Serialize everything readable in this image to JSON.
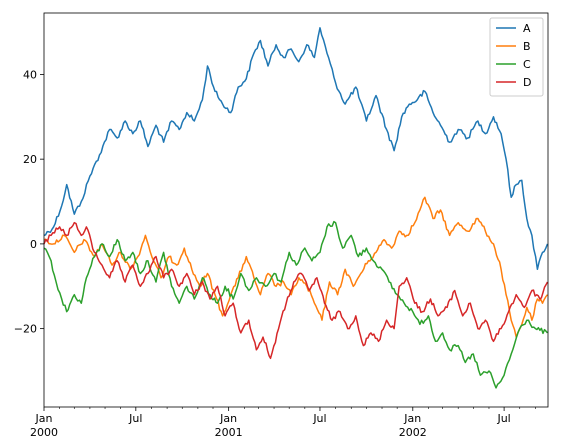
{
  "chart_data": {
    "type": "line",
    "title": "",
    "xlabel": "",
    "ylabel": "",
    "grid": false,
    "legend_position": "top-right",
    "xlim": [
      "2000-01-01",
      "2002-09-26"
    ],
    "ylim": [
      -38.5,
      54.5
    ],
    "x_ticks": [
      {
        "date": "2000-01-01",
        "label": "Jan",
        "sublabel": "2000"
      },
      {
        "date": "2000-07-01",
        "label": "Jul",
        "sublabel": ""
      },
      {
        "date": "2001-01-01",
        "label": "Jan",
        "sublabel": "2001"
      },
      {
        "date": "2001-07-01",
        "label": "Jul",
        "sublabel": ""
      },
      {
        "date": "2002-01-01",
        "label": "Jan",
        "sublabel": "2002"
      },
      {
        "date": "2002-07-01",
        "label": "Jul",
        "sublabel": ""
      }
    ],
    "y_ticks": [
      {
        "value": 40,
        "label": "40"
      },
      {
        "value": 20,
        "label": "20"
      },
      {
        "value": 0,
        "label": "0"
      },
      {
        "value": -20,
        "label": "−20"
      }
    ],
    "series": [
      {
        "name": "A",
        "color": "#1f77b4",
        "points": [
          [
            "2000-01-01",
            2
          ],
          [
            "2000-01-20",
            4
          ],
          [
            "2000-02-05",
            9
          ],
          [
            "2000-02-15",
            14
          ],
          [
            "2000-03-01",
            7
          ],
          [
            "2000-03-15",
            10
          ],
          [
            "2000-04-01",
            16
          ],
          [
            "2000-04-20",
            21
          ],
          [
            "2000-05-10",
            27
          ],
          [
            "2000-05-25",
            25
          ],
          [
            "2000-06-10",
            29
          ],
          [
            "2000-06-25",
            26
          ],
          [
            "2000-07-10",
            29
          ],
          [
            "2000-07-25",
            23
          ],
          [
            "2000-08-10",
            28
          ],
          [
            "2000-08-25",
            24
          ],
          [
            "2000-09-10",
            29
          ],
          [
            "2000-09-25",
            27
          ],
          [
            "2000-10-10",
            31
          ],
          [
            "2000-10-25",
            29
          ],
          [
            "2000-11-10",
            34
          ],
          [
            "2000-11-20",
            42
          ],
          [
            "2000-12-05",
            36
          ],
          [
            "2000-12-20",
            33
          ],
          [
            "2001-01-05",
            31
          ],
          [
            "2001-01-20",
            37
          ],
          [
            "2001-02-05",
            39
          ],
          [
            "2001-02-20",
            45
          ],
          [
            "2001-03-05",
            48
          ],
          [
            "2001-03-20",
            42
          ],
          [
            "2001-04-05",
            47
          ],
          [
            "2001-04-20",
            44
          ],
          [
            "2001-05-05",
            46
          ],
          [
            "2001-05-20",
            43
          ],
          [
            "2001-06-05",
            47
          ],
          [
            "2001-06-20",
            44
          ],
          [
            "2001-07-01",
            51
          ],
          [
            "2001-07-15",
            45
          ],
          [
            "2001-08-01",
            38
          ],
          [
            "2001-08-20",
            33
          ],
          [
            "2001-09-10",
            37
          ],
          [
            "2001-10-01",
            29
          ],
          [
            "2001-10-20",
            35
          ],
          [
            "2001-11-10",
            27
          ],
          [
            "2001-11-25",
            22
          ],
          [
            "2001-12-10",
            30
          ],
          [
            "2001-12-25",
            33
          ],
          [
            "2002-01-10",
            34
          ],
          [
            "2002-01-25",
            36
          ],
          [
            "2002-02-10",
            31
          ],
          [
            "2002-02-25",
            28
          ],
          [
            "2002-03-15",
            24
          ],
          [
            "2002-04-01",
            27
          ],
          [
            "2002-04-20",
            25
          ],
          [
            "2002-05-10",
            29
          ],
          [
            "2002-05-25",
            26
          ],
          [
            "2002-06-10",
            30
          ],
          [
            "2002-06-25",
            26
          ],
          [
            "2002-07-05",
            20
          ],
          [
            "2002-07-15",
            11
          ],
          [
            "2002-07-25",
            14
          ],
          [
            "2002-08-05",
            15
          ],
          [
            "2002-08-15",
            6
          ],
          [
            "2002-08-25",
            2
          ],
          [
            "2002-09-05",
            -6
          ],
          [
            "2002-09-15",
            -2
          ],
          [
            "2002-09-25",
            0
          ]
        ]
      },
      {
        "name": "B",
        "color": "#ff7f0e",
        "points": [
          [
            "2000-01-01",
            1
          ],
          [
            "2000-01-20",
            0
          ],
          [
            "2000-02-10",
            2
          ],
          [
            "2000-03-01",
            -2
          ],
          [
            "2000-03-20",
            1
          ],
          [
            "2000-04-10",
            -3
          ],
          [
            "2000-04-25",
            0
          ],
          [
            "2000-05-15",
            -5
          ],
          [
            "2000-06-01",
            -2
          ],
          [
            "2000-06-20",
            -6
          ],
          [
            "2000-07-05",
            -3
          ],
          [
            "2000-07-20",
            2
          ],
          [
            "2000-08-05",
            -4
          ],
          [
            "2000-08-20",
            -8
          ],
          [
            "2000-09-05",
            -3
          ],
          [
            "2000-09-20",
            -5
          ],
          [
            "2000-10-05",
            -1
          ],
          [
            "2000-10-20",
            -6
          ],
          [
            "2000-11-05",
            -10
          ],
          [
            "2000-11-20",
            -7
          ],
          [
            "2000-12-05",
            -12
          ],
          [
            "2000-12-20",
            -17
          ],
          [
            "2001-01-05",
            -12
          ],
          [
            "2001-01-20",
            -8
          ],
          [
            "2001-02-05",
            -3
          ],
          [
            "2001-02-20",
            -8
          ],
          [
            "2001-03-05",
            -12
          ],
          [
            "2001-03-20",
            -7
          ],
          [
            "2001-04-05",
            -10
          ],
          [
            "2001-04-20",
            -9
          ],
          [
            "2001-05-05",
            -12
          ],
          [
            "2001-05-20",
            -8
          ],
          [
            "2001-06-05",
            -10
          ],
          [
            "2001-06-20",
            -14
          ],
          [
            "2001-07-05",
            -18
          ],
          [
            "2001-07-20",
            -9
          ],
          [
            "2001-08-05",
            -12
          ],
          [
            "2001-08-20",
            -6
          ],
          [
            "2001-09-05",
            -10
          ],
          [
            "2001-09-20",
            -7
          ],
          [
            "2001-10-05",
            -4
          ],
          [
            "2001-10-20",
            -2
          ],
          [
            "2001-11-05",
            1
          ],
          [
            "2001-11-20",
            -1
          ],
          [
            "2001-12-05",
            3
          ],
          [
            "2001-12-20",
            2
          ],
          [
            "2002-01-05",
            5
          ],
          [
            "2002-01-15",
            8
          ],
          [
            "2002-01-25",
            11
          ],
          [
            "2002-02-10",
            6
          ],
          [
            "2002-02-25",
            8
          ],
          [
            "2002-03-15",
            2
          ],
          [
            "2002-04-01",
            5
          ],
          [
            "2002-04-20",
            3
          ],
          [
            "2002-05-10",
            6
          ],
          [
            "2002-05-25",
            3
          ],
          [
            "2002-06-10",
            0
          ],
          [
            "2002-06-25",
            -6
          ],
          [
            "2002-07-05",
            -12
          ],
          [
            "2002-07-15",
            -18
          ],
          [
            "2002-07-25",
            -22
          ],
          [
            "2002-08-05",
            -19
          ],
          [
            "2002-08-15",
            -15
          ],
          [
            "2002-08-25",
            -18
          ],
          [
            "2002-09-05",
            -13
          ],
          [
            "2002-09-15",
            -14
          ],
          [
            "2002-09-25",
            -12
          ]
        ]
      },
      {
        "name": "C",
        "color": "#2ca02c",
        "points": [
          [
            "2000-01-01",
            -1
          ],
          [
            "2000-01-15",
            -4
          ],
          [
            "2000-01-25",
            -9
          ],
          [
            "2000-02-05",
            -13
          ],
          [
            "2000-02-15",
            -16
          ],
          [
            "2000-03-01",
            -12
          ],
          [
            "2000-03-15",
            -14
          ],
          [
            "2000-03-25",
            -8
          ],
          [
            "2000-04-10",
            -3
          ],
          [
            "2000-04-25",
            0
          ],
          [
            "2000-05-10",
            -3
          ],
          [
            "2000-05-25",
            1
          ],
          [
            "2000-06-10",
            -4
          ],
          [
            "2000-06-25",
            -2
          ],
          [
            "2000-07-10",
            -7
          ],
          [
            "2000-07-25",
            -4
          ],
          [
            "2000-08-10",
            -9
          ],
          [
            "2000-08-25",
            -2
          ],
          [
            "2000-09-10",
            -10
          ],
          [
            "2000-09-25",
            -14
          ],
          [
            "2000-10-10",
            -10
          ],
          [
            "2000-10-25",
            -13
          ],
          [
            "2000-11-10",
            -8
          ],
          [
            "2000-11-25",
            -12
          ],
          [
            "2000-12-10",
            -14
          ],
          [
            "2000-12-25",
            -10
          ],
          [
            "2001-01-10",
            -13
          ],
          [
            "2001-01-25",
            -7
          ],
          [
            "2001-02-10",
            -11
          ],
          [
            "2001-02-25",
            -8
          ],
          [
            "2001-03-15",
            -10
          ],
          [
            "2001-04-01",
            -7
          ],
          [
            "2001-04-15",
            -9
          ],
          [
            "2001-05-01",
            -2
          ],
          [
            "2001-05-15",
            -5
          ],
          [
            "2001-06-01",
            -1
          ],
          [
            "2001-06-15",
            -4
          ],
          [
            "2001-07-01",
            -2
          ],
          [
            "2001-07-15",
            4
          ],
          [
            "2001-08-01",
            5
          ],
          [
            "2001-08-15",
            -1
          ],
          [
            "2001-09-01",
            2
          ],
          [
            "2001-09-15",
            -3
          ],
          [
            "2001-10-01",
            -1
          ],
          [
            "2001-10-15",
            -4
          ],
          [
            "2001-11-01",
            -6
          ],
          [
            "2001-11-15",
            -9
          ],
          [
            "2001-12-01",
            -12
          ],
          [
            "2001-12-15",
            -14
          ],
          [
            "2002-01-01",
            -16
          ],
          [
            "2002-01-15",
            -19
          ],
          [
            "2002-02-01",
            -17
          ],
          [
            "2002-02-15",
            -23
          ],
          [
            "2002-03-01",
            -21
          ],
          [
            "2002-03-15",
            -25
          ],
          [
            "2002-04-01",
            -24
          ],
          [
            "2002-04-15",
            -28
          ],
          [
            "2002-05-01",
            -26
          ],
          [
            "2002-05-15",
            -31
          ],
          [
            "2002-06-01",
            -30
          ],
          [
            "2002-06-15",
            -34
          ],
          [
            "2002-07-01",
            -31
          ],
          [
            "2002-07-15",
            -26
          ],
          [
            "2002-08-01",
            -20
          ],
          [
            "2002-08-15",
            -18
          ],
          [
            "2002-09-01",
            -20
          ],
          [
            "2002-09-25",
            -21
          ]
        ]
      },
      {
        "name": "D",
        "color": "#d62728",
        "points": [
          [
            "2000-01-01",
            0
          ],
          [
            "2000-01-15",
            2
          ],
          [
            "2000-02-01",
            4
          ],
          [
            "2000-02-15",
            2
          ],
          [
            "2000-03-01",
            5
          ],
          [
            "2000-03-15",
            2
          ],
          [
            "2000-03-25",
            4
          ],
          [
            "2000-04-10",
            -2
          ],
          [
            "2000-04-25",
            -5
          ],
          [
            "2000-05-10",
            -8
          ],
          [
            "2000-05-25",
            -4
          ],
          [
            "2000-06-10",
            -9
          ],
          [
            "2000-06-25",
            -5
          ],
          [
            "2000-07-10",
            -10
          ],
          [
            "2000-07-25",
            -7
          ],
          [
            "2000-08-10",
            -3
          ],
          [
            "2000-08-25",
            -8
          ],
          [
            "2000-09-10",
            -6
          ],
          [
            "2000-09-25",
            -10
          ],
          [
            "2000-10-10",
            -7
          ],
          [
            "2000-10-25",
            -12
          ],
          [
            "2000-11-10",
            -9
          ],
          [
            "2000-11-25",
            -13
          ],
          [
            "2000-12-10",
            -10
          ],
          [
            "2000-12-25",
            -17
          ],
          [
            "2001-01-10",
            -14
          ],
          [
            "2001-01-25",
            -21
          ],
          [
            "2001-02-10",
            -18
          ],
          [
            "2001-02-25",
            -25
          ],
          [
            "2001-03-10",
            -22
          ],
          [
            "2001-03-25",
            -27
          ],
          [
            "2001-04-10",
            -20
          ],
          [
            "2001-04-25",
            -14
          ],
          [
            "2001-05-10",
            -9
          ],
          [
            "2001-05-25",
            -7
          ],
          [
            "2001-06-10",
            -11
          ],
          [
            "2001-06-25",
            -8
          ],
          [
            "2001-07-10",
            -14
          ],
          [
            "2001-07-25",
            -18
          ],
          [
            "2001-08-10",
            -16
          ],
          [
            "2001-08-25",
            -20
          ],
          [
            "2001-09-10",
            -17
          ],
          [
            "2001-09-25",
            -24
          ],
          [
            "2001-10-10",
            -21
          ],
          [
            "2001-10-25",
            -23
          ],
          [
            "2001-11-10",
            -18
          ],
          [
            "2001-11-25",
            -20
          ],
          [
            "2001-12-05",
            -10
          ],
          [
            "2001-12-20",
            -8
          ],
          [
            "2002-01-05",
            -14
          ],
          [
            "2002-01-20",
            -16
          ],
          [
            "2002-02-05",
            -13
          ],
          [
            "2002-02-20",
            -17
          ],
          [
            "2002-03-10",
            -15
          ],
          [
            "2002-03-25",
            -11
          ],
          [
            "2002-04-10",
            -17
          ],
          [
            "2002-04-25",
            -14
          ],
          [
            "2002-05-10",
            -20
          ],
          [
            "2002-05-25",
            -18
          ],
          [
            "2002-06-10",
            -23
          ],
          [
            "2002-06-25",
            -20
          ],
          [
            "2002-07-10",
            -16
          ],
          [
            "2002-07-25",
            -12
          ],
          [
            "2002-08-10",
            -15
          ],
          [
            "2002-08-25",
            -11
          ],
          [
            "2002-09-10",
            -13
          ],
          [
            "2002-09-25",
            -9
          ]
        ]
      }
    ]
  }
}
